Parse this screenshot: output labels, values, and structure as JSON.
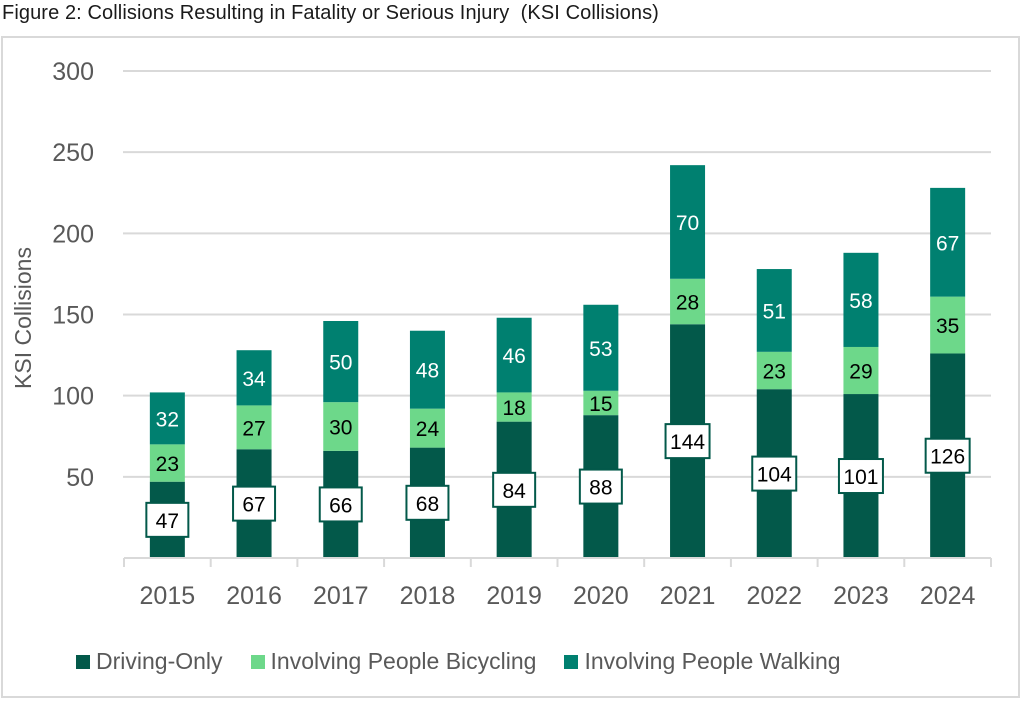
{
  "figure": {
    "title": "Figure 2: Collisions Resulting in Fatality or Serious Injury  (KSI Collisions)"
  },
  "colors": {
    "driving": "#03594a",
    "bicycling": "#6dd88a",
    "walking": "#008070",
    "grid": "#d9d9d9",
    "axis_text": "#595959",
    "frame": "#d9d9d9"
  },
  "chart_data": {
    "type": "bar",
    "stacked": true,
    "title": "Figure 2: Collisions Resulting in Fatality or Serious Injury  (KSI Collisions)",
    "xlabel": "",
    "ylabel": "KSI Collisions",
    "categories": [
      "2015",
      "2016",
      "2017",
      "2018",
      "2019",
      "2020",
      "2021",
      "2022",
      "2023",
      "2024"
    ],
    "ylim": [
      0,
      300
    ],
    "yticks": [
      50,
      100,
      150,
      200,
      250,
      300
    ],
    "grid": true,
    "legend_position": "bottom",
    "series": [
      {
        "name": "Driving-Only",
        "color": "#03594a",
        "label_style": "boxed",
        "values": [
          47,
          67,
          66,
          68,
          84,
          88,
          144,
          104,
          101,
          126
        ]
      },
      {
        "name": "Involving People Bicycling",
        "color": "#6dd88a",
        "label_style": "dark",
        "values": [
          23,
          27,
          30,
          24,
          18,
          15,
          28,
          23,
          29,
          35
        ]
      },
      {
        "name": "Involving People Walking",
        "color": "#008070",
        "label_style": "light",
        "values": [
          32,
          34,
          50,
          48,
          46,
          53,
          70,
          51,
          58,
          67
        ]
      }
    ]
  }
}
